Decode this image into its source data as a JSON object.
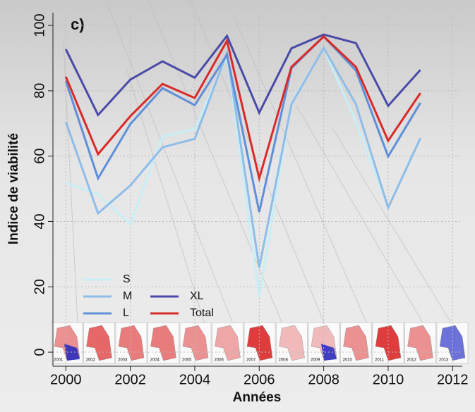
{
  "chart_data": {
    "type": "line",
    "panel_label": "c)",
    "x_label": "Années",
    "y_label": "Indice de viabilité",
    "x": [
      2000,
      2001,
      2002,
      2003,
      2004,
      2005,
      2006,
      2007,
      2008,
      2009,
      2010,
      2011
    ],
    "series": [
      {
        "name": "S",
        "color": "#c8eef6",
        "values": [
          51.9,
          48.3,
          39.2,
          66,
          68.3,
          90.5,
          16.8,
          76.5,
          92.9,
          70.5,
          44.2,
          65.5
        ]
      },
      {
        "name": "M",
        "color": "#8fbde8",
        "values": [
          70.5,
          42.5,
          51,
          62.7,
          65.3,
          91.6,
          25.9,
          75.9,
          93.1,
          75.9,
          44.2,
          65.5
        ]
      },
      {
        "name": "L",
        "color": "#5f8fd8",
        "values": [
          83,
          53.2,
          69.8,
          80.8,
          75.6,
          91,
          42.9,
          86.9,
          96.6,
          86.2,
          59.9,
          76.3
        ]
      },
      {
        "name": "XL",
        "color": "#4a4aa8",
        "values": [
          92.7,
          72.6,
          83.4,
          89,
          84,
          96.8,
          73.3,
          93,
          97.2,
          94.6,
          75.4,
          86.4
        ]
      },
      {
        "name": "Total",
        "color": "#d92a2a",
        "values": [
          84.3,
          60.6,
          72.2,
          82.1,
          77.8,
          95.3,
          53.2,
          87.3,
          96.6,
          87.3,
          64.7,
          79.3
        ]
      }
    ],
    "xlim": [
      1999.6,
      2012.3
    ],
    "ylim": [
      -4.3,
      103.9
    ],
    "xticks": [
      2000,
      2002,
      2004,
      2006,
      2008,
      2010,
      2012
    ],
    "yticks": [
      0,
      20,
      40,
      60,
      80,
      100
    ],
    "grid": true,
    "legend_position": "bottom-left",
    "inset_labels": [
      "2001",
      "2002",
      "2003",
      "2004",
      "2005",
      "2006",
      "2007",
      "2008",
      "2009",
      "2010",
      "2011",
      "2012",
      "2013"
    ]
  }
}
